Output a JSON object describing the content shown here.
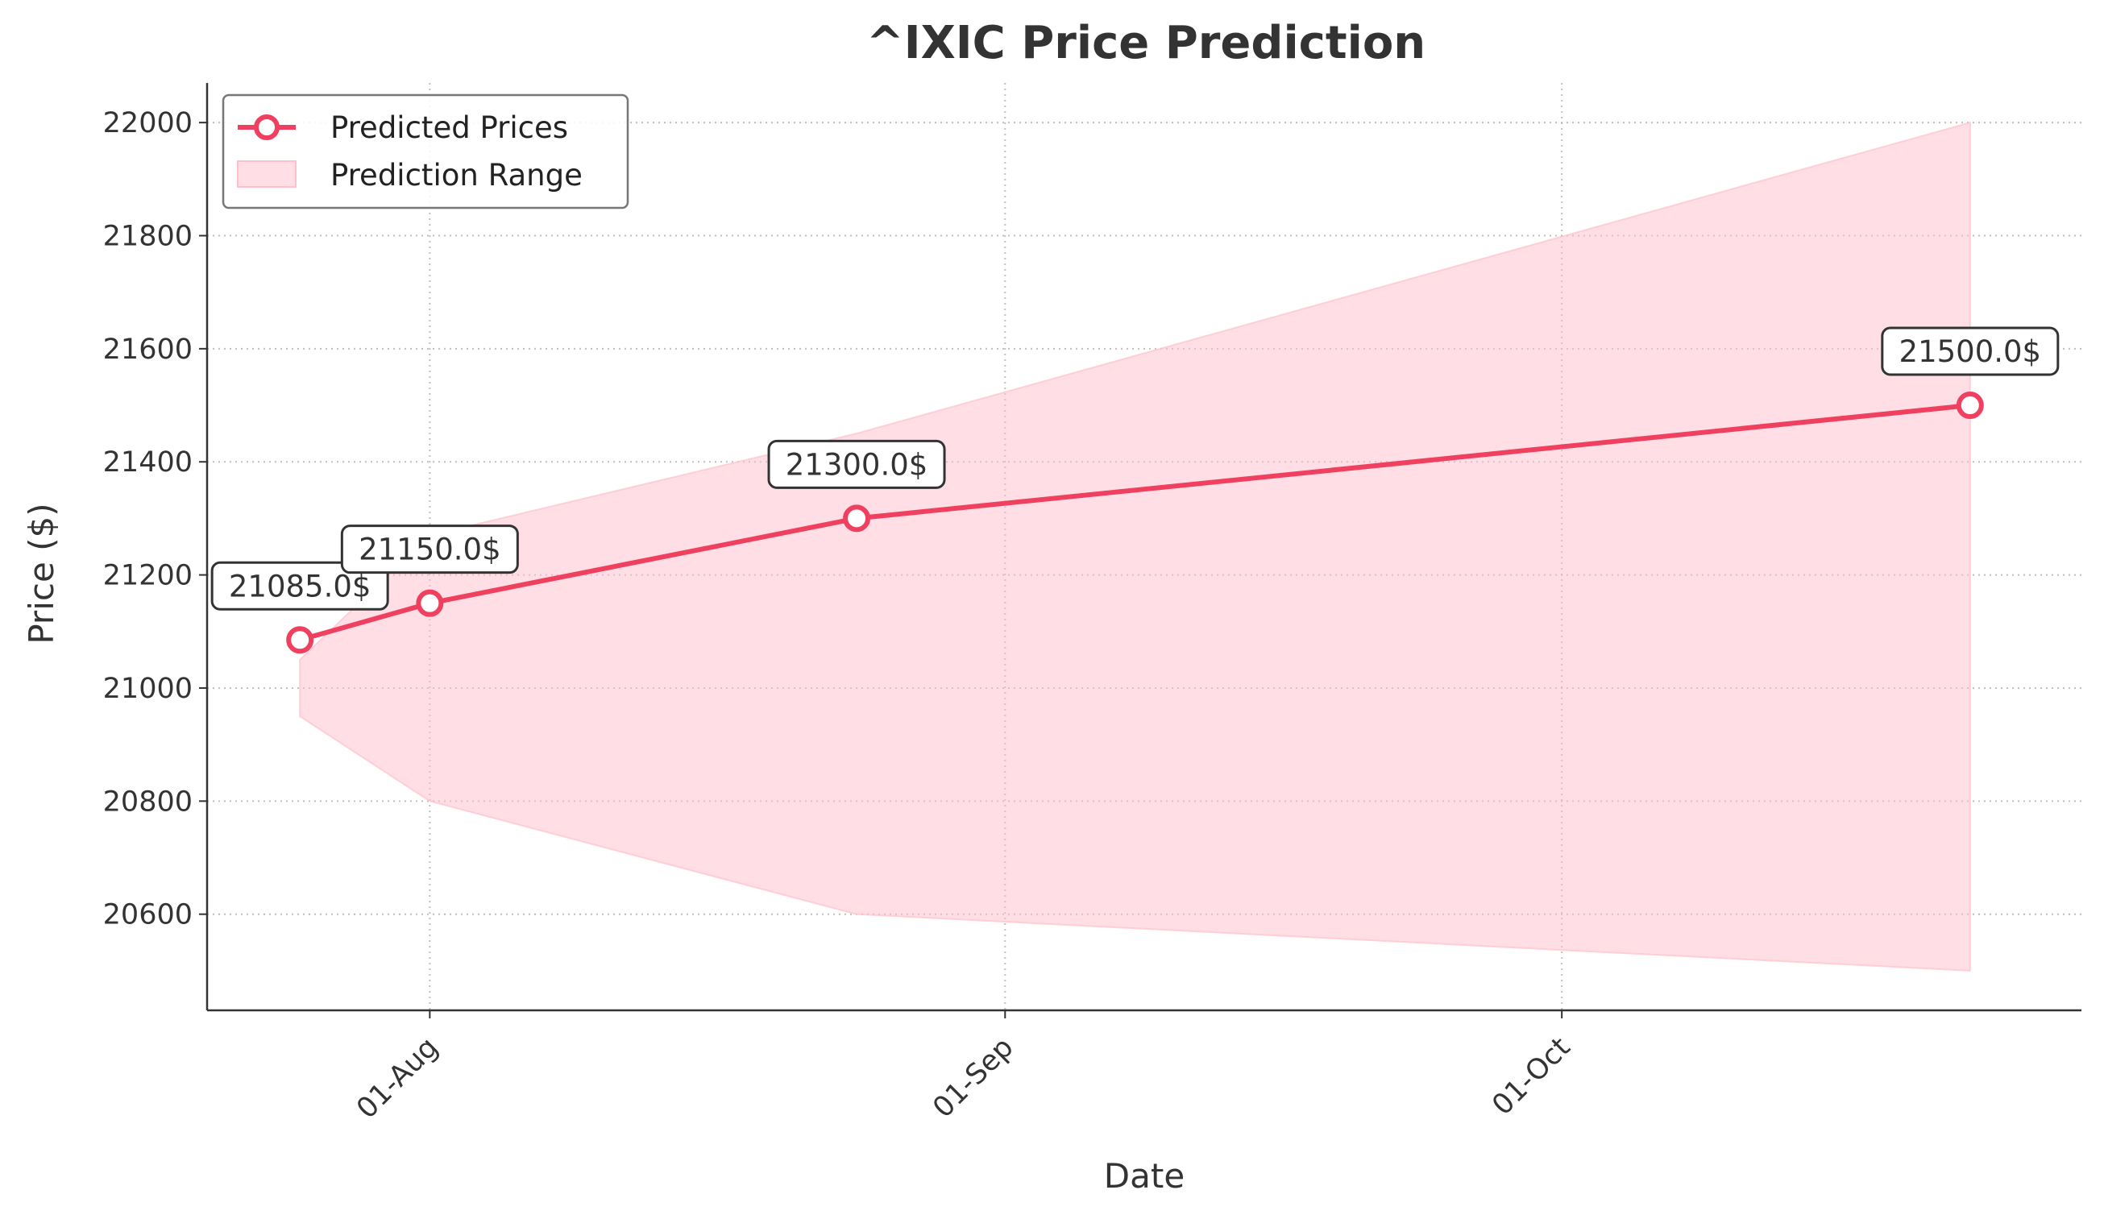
{
  "chart_data": {
    "type": "line",
    "title": "^IXIC Price Prediction",
    "xlabel": "Date",
    "ylabel": "Price ($)",
    "x_ticks": [
      {
        "label": "01-Aug",
        "date": "2025-08-01"
      },
      {
        "label": "01-Sep",
        "date": "2025-09-01"
      },
      {
        "label": "01-Oct",
        "date": "2025-10-01"
      }
    ],
    "xlim": [
      "2025-07-20",
      "2025-10-29"
    ],
    "y_ticks": [
      20600,
      20800,
      21000,
      21200,
      21400,
      21600,
      21800,
      22000
    ],
    "ylim": [
      20430,
      22070
    ],
    "grid": true,
    "legend_position": "top-left",
    "series": [
      {
        "name": "Predicted Prices",
        "color": "#f0405f",
        "x": [
          "2025-07-25",
          "2025-08-01",
          "2025-08-24",
          "2025-10-23"
        ],
        "values": [
          21085,
          21150,
          21300,
          21500
        ],
        "labels": [
          "21085.0$",
          "21150.0$",
          "21300.0$",
          "21500.0$"
        ]
      }
    ],
    "range": {
      "name": "Prediction Range",
      "color": "#ffc0cb",
      "x": [
        "2025-07-25",
        "2025-08-01",
        "2025-08-24",
        "2025-10-23"
      ],
      "lower": [
        20950,
        20800,
        20600,
        20500
      ],
      "upper": [
        21050,
        21270,
        21450,
        22000
      ]
    }
  }
}
